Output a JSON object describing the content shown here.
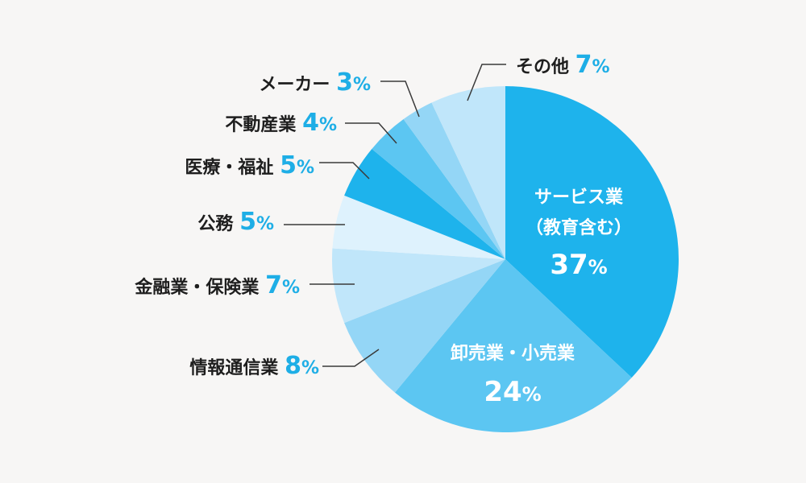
{
  "chart_data": {
    "type": "pie",
    "start_angle_deg": 0,
    "direction": "clockwise",
    "slices": [
      {
        "name": "サービス業",
        "name2": "（教育含む）",
        "value": 37,
        "pct_label": "37",
        "color": "#1eb3ec",
        "label_inside": true
      },
      {
        "name": "卸売業・小売業",
        "value": 24,
        "pct_label": "24",
        "color": "#5cc6f2",
        "label_inside": true
      },
      {
        "name": "情報通信業",
        "value": 8,
        "pct_label": "8",
        "color": "#94d6f6",
        "label_inside": false
      },
      {
        "name": "金融業・保険業",
        "value": 7,
        "pct_label": "7",
        "color": "#c0e6fa",
        "label_inside": false
      },
      {
        "name": "公務",
        "value": 5,
        "pct_label": "5",
        "color": "#def2fd",
        "label_inside": false
      },
      {
        "name": "医療・福祉",
        "value": 5,
        "pct_label": "5",
        "color": "#1eb3ec",
        "label_inside": false
      },
      {
        "name": "不動産業",
        "value": 4,
        "pct_label": "4",
        "color": "#5cc6f2",
        "label_inside": false
      },
      {
        "name": "メーカー",
        "value": 3,
        "pct_label": "3",
        "color": "#94d6f6",
        "label_inside": false
      },
      {
        "name": "その他",
        "value": 7,
        "pct_label": "7",
        "color": "#c0e6fa",
        "label_inside": false
      }
    ],
    "percent_symbol": "%",
    "label_percent_color": "#1eaee6",
    "label_text_color": "#1e1e1e"
  }
}
